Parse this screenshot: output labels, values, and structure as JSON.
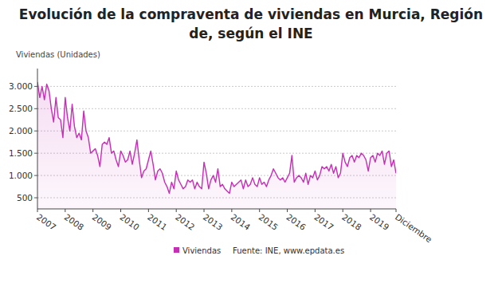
{
  "chart_data": {
    "type": "line",
    "title": "Evolución de la compraventa de viviendas en Murcia, Región de, según el INE",
    "y_label": "Viviendas (Unidades)",
    "source": "Fuente: INE, www.epdata.es",
    "categories": [
      "2007",
      null,
      null,
      null,
      null,
      null,
      null,
      null,
      null,
      null,
      null,
      null,
      "2008",
      null,
      null,
      null,
      null,
      null,
      null,
      null,
      null,
      null,
      null,
      null,
      "2009",
      null,
      null,
      null,
      null,
      null,
      null,
      null,
      null,
      null,
      null,
      null,
      "2010",
      null,
      null,
      null,
      null,
      null,
      null,
      null,
      null,
      null,
      null,
      null,
      "2011",
      null,
      null,
      null,
      null,
      null,
      null,
      null,
      null,
      null,
      null,
      null,
      "2012",
      null,
      null,
      null,
      null,
      null,
      null,
      null,
      null,
      null,
      null,
      null,
      "2013",
      null,
      null,
      null,
      null,
      null,
      null,
      null,
      null,
      null,
      null,
      null,
      "2014",
      null,
      null,
      null,
      null,
      null,
      null,
      null,
      null,
      null,
      null,
      null,
      "2015",
      null,
      null,
      null,
      null,
      null,
      null,
      null,
      null,
      null,
      null,
      null,
      "2016",
      null,
      null,
      null,
      null,
      null,
      null,
      null,
      null,
      null,
      null,
      null,
      "2017",
      null,
      null,
      null,
      null,
      null,
      null,
      null,
      null,
      null,
      null,
      null,
      "2018",
      null,
      null,
      null,
      null,
      null,
      null,
      null,
      null,
      null,
      null,
      null,
      "2019",
      null,
      null,
      null,
      null,
      null,
      null,
      null,
      null,
      null,
      null,
      "Diciembre"
    ],
    "series": [
      {
        "name": "Viviendas",
        "color": "#c42fb4",
        "values": [
          3100,
          2750,
          3000,
          2700,
          3050,
          2900,
          2500,
          2200,
          2750,
          2300,
          2250,
          1850,
          2750,
          2300,
          2000,
          2600,
          2100,
          1850,
          1950,
          1800,
          2450,
          2000,
          1850,
          1500,
          1550,
          1600,
          1450,
          1200,
          1700,
          1750,
          1700,
          1850,
          1500,
          1550,
          1350,
          1200,
          1550,
          1450,
          1300,
          1350,
          1550,
          1250,
          1500,
          1800,
          1350,
          950,
          1100,
          1150,
          1350,
          1550,
          1250,
          900,
          1100,
          1150,
          1050,
          850,
          750,
          600,
          850,
          700,
          1100,
          900,
          800,
          700,
          750,
          900,
          850,
          900,
          700,
          850,
          750,
          700,
          1300,
          1050,
          700,
          900,
          1000,
          850,
          1150,
          750,
          800,
          700,
          650,
          600,
          850,
          750,
          800,
          850,
          900,
          700,
          900,
          750,
          800,
          950,
          800,
          750,
          950,
          800,
          850,
          750,
          900,
          1000,
          1150,
          1050,
          950,
          900,
          950,
          850,
          950,
          1050,
          1450,
          850,
          950,
          1000,
          950,
          850,
          1050,
          800,
          1000,
          950,
          1100,
          900,
          1000,
          1200,
          1150,
          1200,
          1100,
          1250,
          1050,
          1200,
          950,
          1050,
          1500,
          1300,
          1200,
          1400,
          1450,
          1300,
          1450,
          1400,
          1500,
          1450,
          1350,
          1100,
          1400,
          1450,
          1300,
          1500,
          1450,
          1550,
          1250,
          1500,
          1550,
          1200,
          1350,
          1050
        ]
      }
    ],
    "ylim": [
      250,
      3400
    ],
    "yticks": [
      500,
      {
        "value": 1000,
        "label": "1.000"
      },
      {
        "value": 1500,
        "label": "1.500"
      },
      {
        "value": 2000,
        "label": "2.000"
      },
      {
        "value": 2500,
        "label": "2.500"
      },
      {
        "value": 3000,
        "label": "3.000"
      }
    ],
    "grid": true,
    "legend": "bottom"
  }
}
